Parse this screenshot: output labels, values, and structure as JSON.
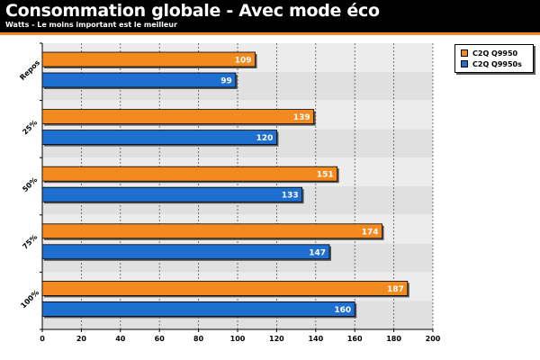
{
  "header": {
    "title": "Consommation globale - Avec mode éco",
    "subtitle": "Watts - Le moins important est le meilleur"
  },
  "colors": {
    "accent": "#f28a1f",
    "series_a": "#f28a1f",
    "series_b": "#1f6fd0",
    "band_a": "#ececec",
    "band_b": "#e0e0e0"
  },
  "chart_data": {
    "type": "bar",
    "orientation": "horizontal",
    "categories": [
      "Repos",
      "25%",
      "50%",
      "75%",
      "100%"
    ],
    "series": [
      {
        "name": "C2Q Q9950",
        "values": [
          109,
          139,
          151,
          174,
          187
        ]
      },
      {
        "name": "C2Q Q9950s",
        "values": [
          99,
          120,
          133,
          147,
          160
        ]
      }
    ],
    "xlim": [
      0,
      200
    ],
    "xticks": [
      0,
      20,
      40,
      60,
      80,
      100,
      120,
      140,
      160,
      180,
      200
    ],
    "grid": true,
    "legend_position": "top-right"
  }
}
